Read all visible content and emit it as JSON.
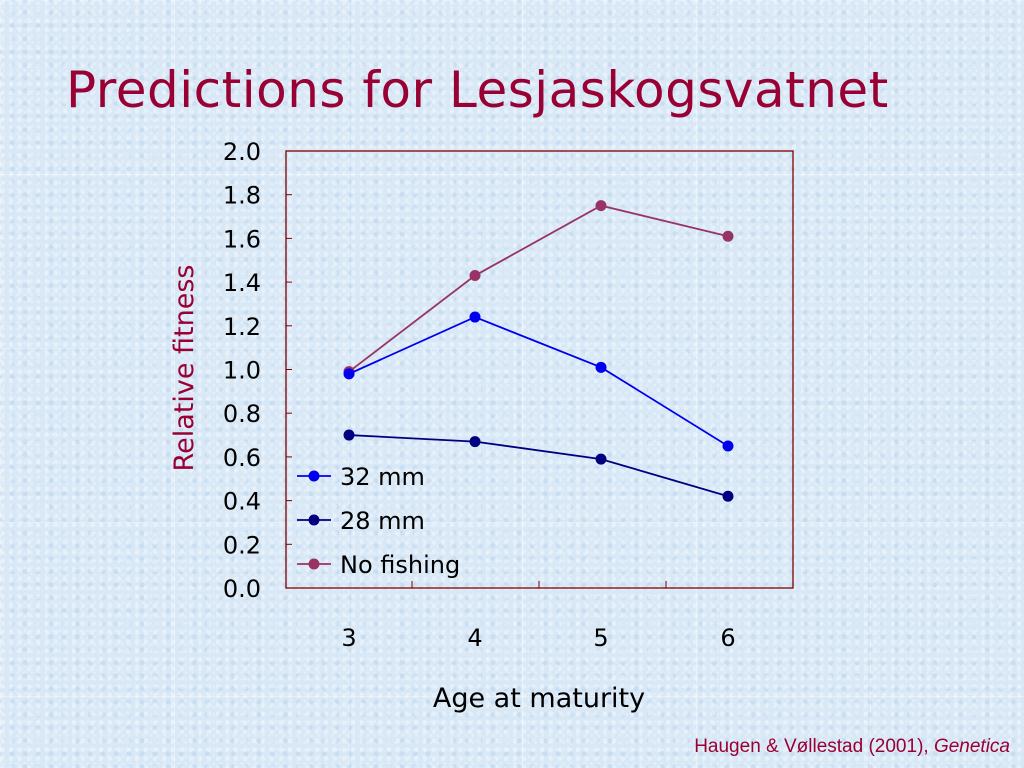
{
  "slide": {
    "title": "Predictions for Lesjaskogsvatnet",
    "citation_authors": "Haugen & Vøllestad (2001),",
    "citation_journal": "Genetica"
  },
  "colors": {
    "title": "#990033",
    "ylabel": "#990033",
    "series_32mm": "#0000ee",
    "series_28mm": "#000080",
    "series_no_fishing": "#993366",
    "plot_border": "#800000"
  },
  "chart_data": {
    "type": "line",
    "title": "",
    "xlabel": "Age at maturity",
    "ylabel": "Relative fitness",
    "x": [
      3,
      4,
      5,
      6
    ],
    "x_tick_labels": [
      "3",
      "4",
      "5",
      "6"
    ],
    "y_tick_labels": [
      "0.0",
      "0.2",
      "0.4",
      "0.6",
      "0.8",
      "1.0",
      "1.2",
      "1.4",
      "1.6",
      "1.8",
      "2.0"
    ],
    "ylim": [
      0,
      2.0
    ],
    "grid": false,
    "legend_position": "bottom-left",
    "series": [
      {
        "name": "32 mm",
        "values": [
          0.98,
          1.24,
          1.01,
          0.65
        ],
        "color": "#0000ee"
      },
      {
        "name": "28 mm",
        "values": [
          0.7,
          0.67,
          0.59,
          0.42
        ],
        "color": "#000080"
      },
      {
        "name": "No fishing",
        "values": [
          0.99,
          1.43,
          1.75,
          1.61
        ],
        "color": "#993366"
      }
    ]
  }
}
